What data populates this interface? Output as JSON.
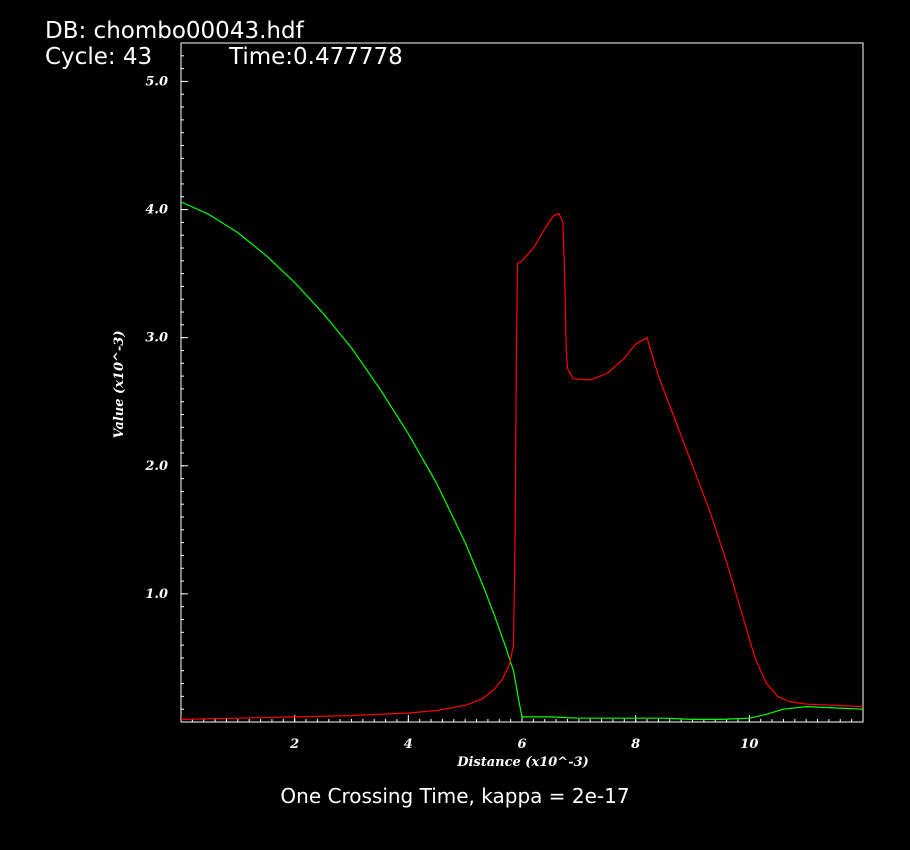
{
  "header": {
    "db_line": "DB: chombo00043.hdf",
    "cycle_line": "Cycle: 43",
    "time_line": "Time:0.477778"
  },
  "caption": "One Crossing Time, kappa = 2e-17",
  "chart_data": {
    "type": "line",
    "xlabel": "Distance (x10^-3)",
    "ylabel": "Value (x10^-3)",
    "xlim": [
      0,
      12
    ],
    "ylim": [
      0,
      5.3
    ],
    "x_ticks": [
      2,
      4,
      6,
      8,
      10
    ],
    "x_tick_labels": [
      "2",
      "4",
      "6",
      "8",
      "10"
    ],
    "y_ticks": [
      1,
      2,
      3,
      4,
      5
    ],
    "y_tick_labels": [
      "1.0",
      "2.0",
      "3.0",
      "4.0",
      "5.0"
    ],
    "grid": false,
    "background": "#000000",
    "axis_color": "#ffffff",
    "series": [
      {
        "color": "#00ff00",
        "x": [
          0,
          0.5,
          1,
          1.5,
          2,
          2.5,
          3,
          3.5,
          4,
          4.5,
          5,
          5.3,
          5.5,
          5.7,
          5.85,
          5.95,
          6.0,
          6.5,
          7,
          7.5,
          8,
          8.5,
          9,
          9.5,
          10,
          10.3,
          10.6,
          11,
          11.5,
          12
        ],
        "y": [
          4.06,
          3.96,
          3.82,
          3.64,
          3.43,
          3.19,
          2.92,
          2.6,
          2.25,
          1.86,
          1.4,
          1.08,
          0.85,
          0.6,
          0.4,
          0.15,
          0.04,
          0.04,
          0.03,
          0.03,
          0.03,
          0.03,
          0.02,
          0.02,
          0.03,
          0.06,
          0.1,
          0.12,
          0.11,
          0.1
        ]
      },
      {
        "color": "#ff0000",
        "x": [
          0,
          1,
          2,
          3,
          4,
          4.5,
          5,
          5.3,
          5.5,
          5.65,
          5.78,
          5.85,
          5.88,
          5.9,
          5.92,
          6.0,
          6.2,
          6.4,
          6.55,
          6.65,
          6.72,
          6.75,
          6.78,
          6.8,
          6.9,
          7.2,
          7.5,
          7.8,
          8.0,
          8.2,
          8.4,
          8.7,
          9.0,
          9.3,
          9.6,
          9.9,
          10.1,
          10.3,
          10.5,
          10.7,
          11,
          11.5,
          12
        ],
        "y": [
          0.02,
          0.03,
          0.04,
          0.05,
          0.07,
          0.09,
          0.13,
          0.18,
          0.25,
          0.33,
          0.45,
          0.6,
          1.5,
          2.8,
          3.58,
          3.6,
          3.7,
          3.85,
          3.95,
          3.97,
          3.9,
          3.5,
          2.9,
          2.76,
          2.68,
          2.67,
          2.72,
          2.84,
          2.95,
          3.0,
          2.7,
          2.35,
          2.0,
          1.65,
          1.25,
          0.8,
          0.5,
          0.3,
          0.2,
          0.16,
          0.14,
          0.13,
          0.12
        ]
      }
    ]
  }
}
